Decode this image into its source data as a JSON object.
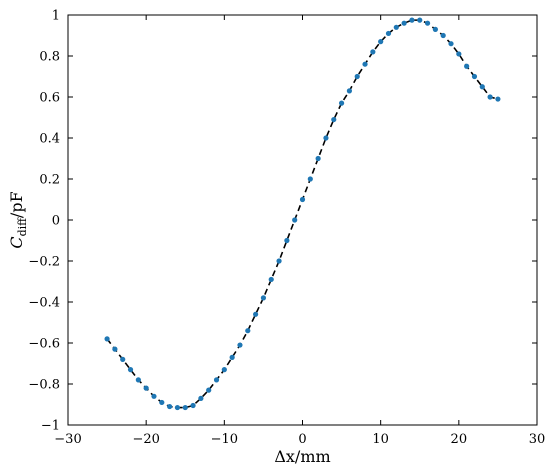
{
  "chart_data": {
    "type": "scatter",
    "xlabel": "Δx/mm",
    "ylabel_main": "C",
    "ylabel_sub": "diff",
    "ylabel_unit": "/pF",
    "xlim": [
      -30,
      30
    ],
    "ylim": [
      -1,
      1
    ],
    "xticks": [
      -30,
      -20,
      -10,
      0,
      10,
      20,
      30
    ],
    "yticks": [
      -1,
      -0.8,
      -0.6,
      -0.4,
      -0.2,
      0,
      0.2,
      0.4,
      0.6,
      0.8,
      1
    ],
    "xtick_labels": [
      "−30",
      "−20",
      "−10",
      "0",
      "10",
      "20",
      "30"
    ],
    "ytick_labels": [
      "−1",
      "−0.8",
      "−0.6",
      "−0.4",
      "−0.2",
      "0",
      "0.2",
      "0.4",
      "0.6",
      "0.8",
      "1"
    ],
    "grid": false,
    "colors": {
      "points": "#1f77b4",
      "fit_line": "#000000"
    },
    "series": [
      {
        "type": "scatter",
        "x": [
          -25,
          -24,
          -23,
          -22,
          -21,
          -20,
          -19,
          -18,
          -17,
          -16,
          -15,
          -14,
          -13,
          -12,
          -11,
          -10,
          -9,
          -8,
          -7,
          -6,
          -5,
          -4,
          -3,
          -2,
          -1,
          0,
          1,
          2,
          3,
          4,
          5,
          6,
          7,
          8,
          9,
          10,
          11,
          12,
          13,
          14,
          15,
          16,
          17,
          18,
          19,
          20,
          21,
          22,
          23,
          24,
          25
        ],
        "y": [
          -0.58,
          -0.63,
          -0.68,
          -0.73,
          -0.78,
          -0.82,
          -0.86,
          -0.89,
          -0.91,
          -0.915,
          -0.915,
          -0.905,
          -0.87,
          -0.83,
          -0.78,
          -0.73,
          -0.67,
          -0.61,
          -0.54,
          -0.46,
          -0.38,
          -0.29,
          -0.2,
          -0.1,
          0.0,
          0.1,
          0.2,
          0.3,
          0.4,
          0.49,
          0.57,
          0.63,
          0.7,
          0.76,
          0.82,
          0.87,
          0.91,
          0.94,
          0.96,
          0.975,
          0.975,
          0.96,
          0.93,
          0.9,
          0.86,
          0.81,
          0.75,
          0.7,
          0.65,
          0.6,
          0.59
        ]
      },
      {
        "type": "line",
        "style": "dashed",
        "x": [
          -25,
          -24,
          -23,
          -22,
          -21,
          -20,
          -19,
          -18,
          -17,
          -16,
          -15,
          -14,
          -13,
          -12,
          -11,
          -10,
          -9,
          -8,
          -7,
          -6,
          -5,
          -4,
          -3,
          -2,
          -1,
          0,
          1,
          2,
          3,
          4,
          5,
          6,
          7,
          8,
          9,
          10,
          11,
          12,
          13,
          14,
          15,
          16,
          17,
          18,
          19,
          20,
          21,
          22,
          23,
          24,
          25
        ],
        "y": [
          -0.58,
          -0.63,
          -0.68,
          -0.73,
          -0.78,
          -0.82,
          -0.86,
          -0.89,
          -0.91,
          -0.915,
          -0.915,
          -0.905,
          -0.87,
          -0.83,
          -0.78,
          -0.73,
          -0.67,
          -0.61,
          -0.54,
          -0.46,
          -0.38,
          -0.29,
          -0.2,
          -0.1,
          0.0,
          0.1,
          0.2,
          0.3,
          0.4,
          0.49,
          0.57,
          0.63,
          0.7,
          0.76,
          0.82,
          0.87,
          0.91,
          0.94,
          0.96,
          0.975,
          0.975,
          0.96,
          0.93,
          0.9,
          0.86,
          0.81,
          0.75,
          0.7,
          0.65,
          0.6,
          0.59
        ]
      }
    ]
  }
}
